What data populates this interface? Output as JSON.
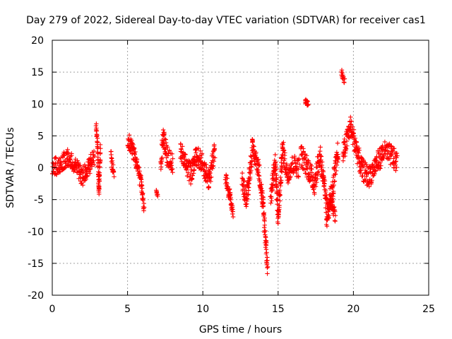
{
  "chart_data": {
    "type": "scatter",
    "title": "Day 279 of 2022, Sidereal Day-to-day VTEC variation (SDTVAR) for receiver cas1",
    "xlabel": "GPS time / hours",
    "ylabel": "SDTVAR / TECUs",
    "xlim": [
      0,
      25
    ],
    "ylim": [
      -20,
      20
    ],
    "xticks": [
      0,
      5,
      10,
      15,
      20,
      25
    ],
    "yticks": [
      -20,
      -15,
      -10,
      -5,
      0,
      5,
      10,
      15,
      20
    ],
    "grid": true,
    "marker": "+",
    "color": "#ff0000",
    "segments": [
      {
        "x": [
          0.0,
          0.5,
          1.0,
          1.5,
          2.0,
          2.5,
          2.8
        ],
        "y": [
          0.0,
          0.5,
          1.5,
          0.5,
          -1.5,
          0.5,
          1.5
        ],
        "spread": 1.4
      },
      {
        "x": [
          2.9,
          3.0,
          3.1,
          3.2
        ],
        "y": [
          6.8,
          4.0,
          -4.0,
          3.0
        ],
        "spread": 0.8
      },
      {
        "x": [
          3.9,
          4.0,
          4.1
        ],
        "y": [
          2.0,
          0.0,
          -1.0
        ],
        "spread": 1.0
      },
      {
        "x": [
          5.0,
          5.3,
          5.6,
          5.9,
          6.1
        ],
        "y": [
          4.5,
          3.0,
          0.5,
          -2.5,
          -6.2
        ],
        "spread": 1.2
      },
      {
        "x": [
          6.9,
          7.0
        ],
        "y": [
          -3.7,
          -4.2
        ],
        "spread": 0.3
      },
      {
        "x": [
          7.2,
          7.4,
          7.6,
          8.0
        ],
        "y": [
          1.0,
          5.0,
          2.0,
          0.5
        ],
        "spread": 1.5
      },
      {
        "x": [
          8.5,
          8.8,
          9.2,
          9.6,
          10.0,
          10.4,
          10.8
        ],
        "y": [
          3.0,
          1.0,
          -1.0,
          2.0,
          0.5,
          -2.0,
          2.5
        ],
        "spread": 1.6
      },
      {
        "x": [
          11.5,
          11.8,
          12.0
        ],
        "y": [
          -1.5,
          -4.5,
          -7.0
        ],
        "spread": 1.0
      },
      {
        "x": [
          12.6,
          12.9,
          13.3,
          13.7,
          14.0,
          14.3
        ],
        "y": [
          -2.0,
          -5.0,
          3.0,
          0.0,
          -6.0,
          -15.5
        ],
        "spread": 1.5
      },
      {
        "x": [
          14.5,
          14.8,
          15.0,
          15.3,
          15.6,
          16.0,
          16.4
        ],
        "y": [
          -5.0,
          1.0,
          -8.0,
          3.0,
          -1.0,
          0.5,
          0.0
        ],
        "spread": 1.6
      },
      {
        "x": [
          16.8,
          17.0
        ],
        "y": [
          10.5,
          10.0
        ],
        "spread": 0.4
      },
      {
        "x": [
          16.5,
          17.0,
          17.4,
          17.8,
          18.2,
          18.6,
          19.0
        ],
        "y": [
          2.0,
          0.0,
          -2.5,
          2.0,
          -6.0,
          -4.0,
          3.0
        ],
        "spread": 1.8
      },
      {
        "x": [
          18.2,
          18.5,
          18.8
        ],
        "y": [
          -9.0,
          -5.0,
          -7.5
        ],
        "spread": 1.0
      },
      {
        "x": [
          19.2,
          19.4
        ],
        "y": [
          15.0,
          13.5
        ],
        "spread": 0.6
      },
      {
        "x": [
          19.3,
          19.8,
          20.2,
          20.5,
          21.0,
          21.5,
          22.0,
          22.5,
          22.9
        ],
        "y": [
          2.0,
          6.5,
          3.0,
          0.0,
          -1.5,
          0.5,
          2.5,
          2.0,
          0.8
        ],
        "spread": 1.7
      }
    ]
  }
}
